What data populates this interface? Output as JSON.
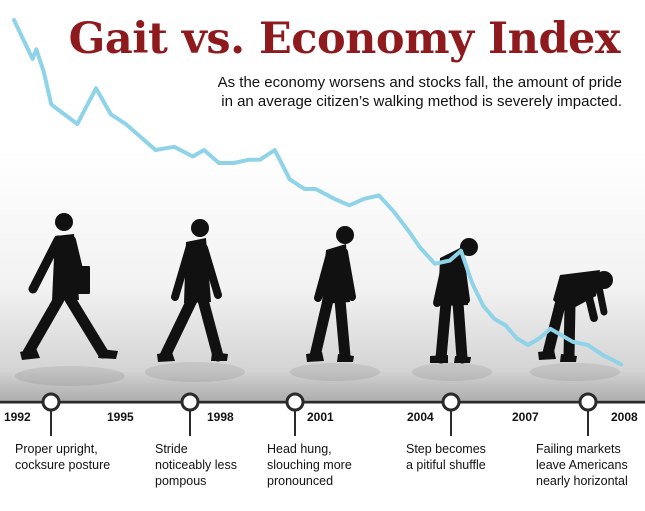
{
  "header": {
    "title": "Gait vs. Economy Index",
    "subtitle_line1": "As the economy worsens and stocks fall, the amount of pride",
    "subtitle_line2": "in an average citizen’s walking method is severely impacted."
  },
  "colors": {
    "title": "#8e1a1e",
    "index_line": "#8fd3e8",
    "silhouette": "#111111",
    "timeline": "#2a2a2a"
  },
  "chart_data": {
    "type": "line",
    "title": "Gait vs. Economy Index",
    "subtitle": "As the economy worsens and stocks fall, the amount of pride in an average citizen’s walking method is severely impacted.",
    "xlabel": "",
    "ylabel": "",
    "x_ticks": [
      "1992",
      "1995",
      "1998",
      "2001",
      "2004",
      "2007",
      "2008"
    ],
    "xlim": [
      1992,
      2008
    ],
    "grid": false,
    "y_axis": "unlabeled, relative index",
    "series": [
      {
        "color": "#8fd3e8",
        "x": [
          1992.0,
          1992.5,
          1992.6,
          1992.8,
          1993.0,
          1993.7,
          1994.2,
          1994.6,
          1995.0,
          1995.3,
          1995.8,
          1996.3,
          1996.8,
          1997.1,
          1997.5,
          1997.9,
          1998.3,
          1998.6,
          1999.0,
          1999.4,
          1999.8,
          2000.1,
          2000.6,
          2001.0,
          2001.4,
          2001.8,
          2002.2,
          2002.6,
          2002.9,
          2003.3,
          2003.7,
          2004.0,
          2004.3,
          2004.6,
          2004.9,
          2005.2,
          2005.5,
          2005.8,
          2006.1,
          2006.4,
          2006.7,
          2007.0,
          2007.4,
          2007.8,
          2008.3
        ],
        "y": [
          100,
          88,
          91,
          84,
          74,
          68,
          79,
          71,
          68,
          65,
          60,
          61,
          58,
          60,
          56,
          56,
          57,
          57,
          60,
          51,
          48,
          48,
          45,
          43,
          45,
          46,
          41,
          35,
          30,
          25,
          26,
          29,
          19,
          12,
          8,
          6,
          2,
          0,
          2,
          5,
          3,
          1,
          0,
          -3,
          -6
        ]
      }
    ],
    "milestones": [
      {
        "year": 1992,
        "caption": "Proper upright, cocksure posture",
        "posture": "upright"
      },
      {
        "year": 1998,
        "caption": "Stride noticeably less pompous",
        "posture": "slight lean"
      },
      {
        "year": 2001,
        "caption": "Head hung, slouching more pronounced",
        "posture": "slouch"
      },
      {
        "year": 2004,
        "caption": "Step becomes a pitiful shuffle",
        "posture": "shuffle"
      },
      {
        "year": 2008,
        "caption": "Failing markets leave Americans nearly horizontal",
        "posture": "nearly horizontal"
      }
    ]
  },
  "captions": {
    "c1": [
      "Proper upright,",
      "cocksure posture"
    ],
    "c2": [
      "Stride",
      "noticeably less",
      "pompous"
    ],
    "c3": [
      "Head hung,",
      "slouching more",
      "pronounced"
    ],
    "c4": [
      "Step becomes",
      "a pitiful shuffle"
    ],
    "c5": [
      "Failing markets",
      "leave Americans",
      "nearly horizontal"
    ]
  },
  "icons": [
    "walking-figure-icon",
    "briefcase-icon",
    "timeline-marker-icon"
  ]
}
